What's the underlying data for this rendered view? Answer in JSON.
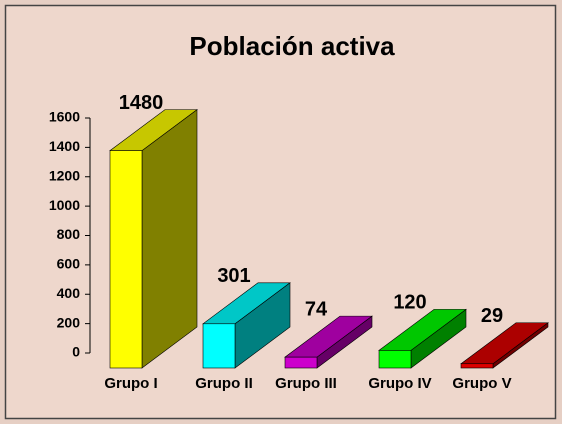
{
  "chart_data": {
    "type": "bar3d",
    "title": "Población activa",
    "categories": [
      "Grupo I",
      "Grupo II",
      "Grupo III",
      "Grupo IV",
      "Grupo V"
    ],
    "values": [
      1480,
      301,
      74,
      120,
      29
    ],
    "colors": [
      "#ffff00",
      "#00ffff",
      "#cc00cc",
      "#00ff00",
      "#dd0000"
    ],
    "ylim": [
      0,
      1600
    ],
    "yticks": [
      0,
      200,
      400,
      600,
      800,
      1000,
      1200,
      1400,
      1600
    ]
  }
}
